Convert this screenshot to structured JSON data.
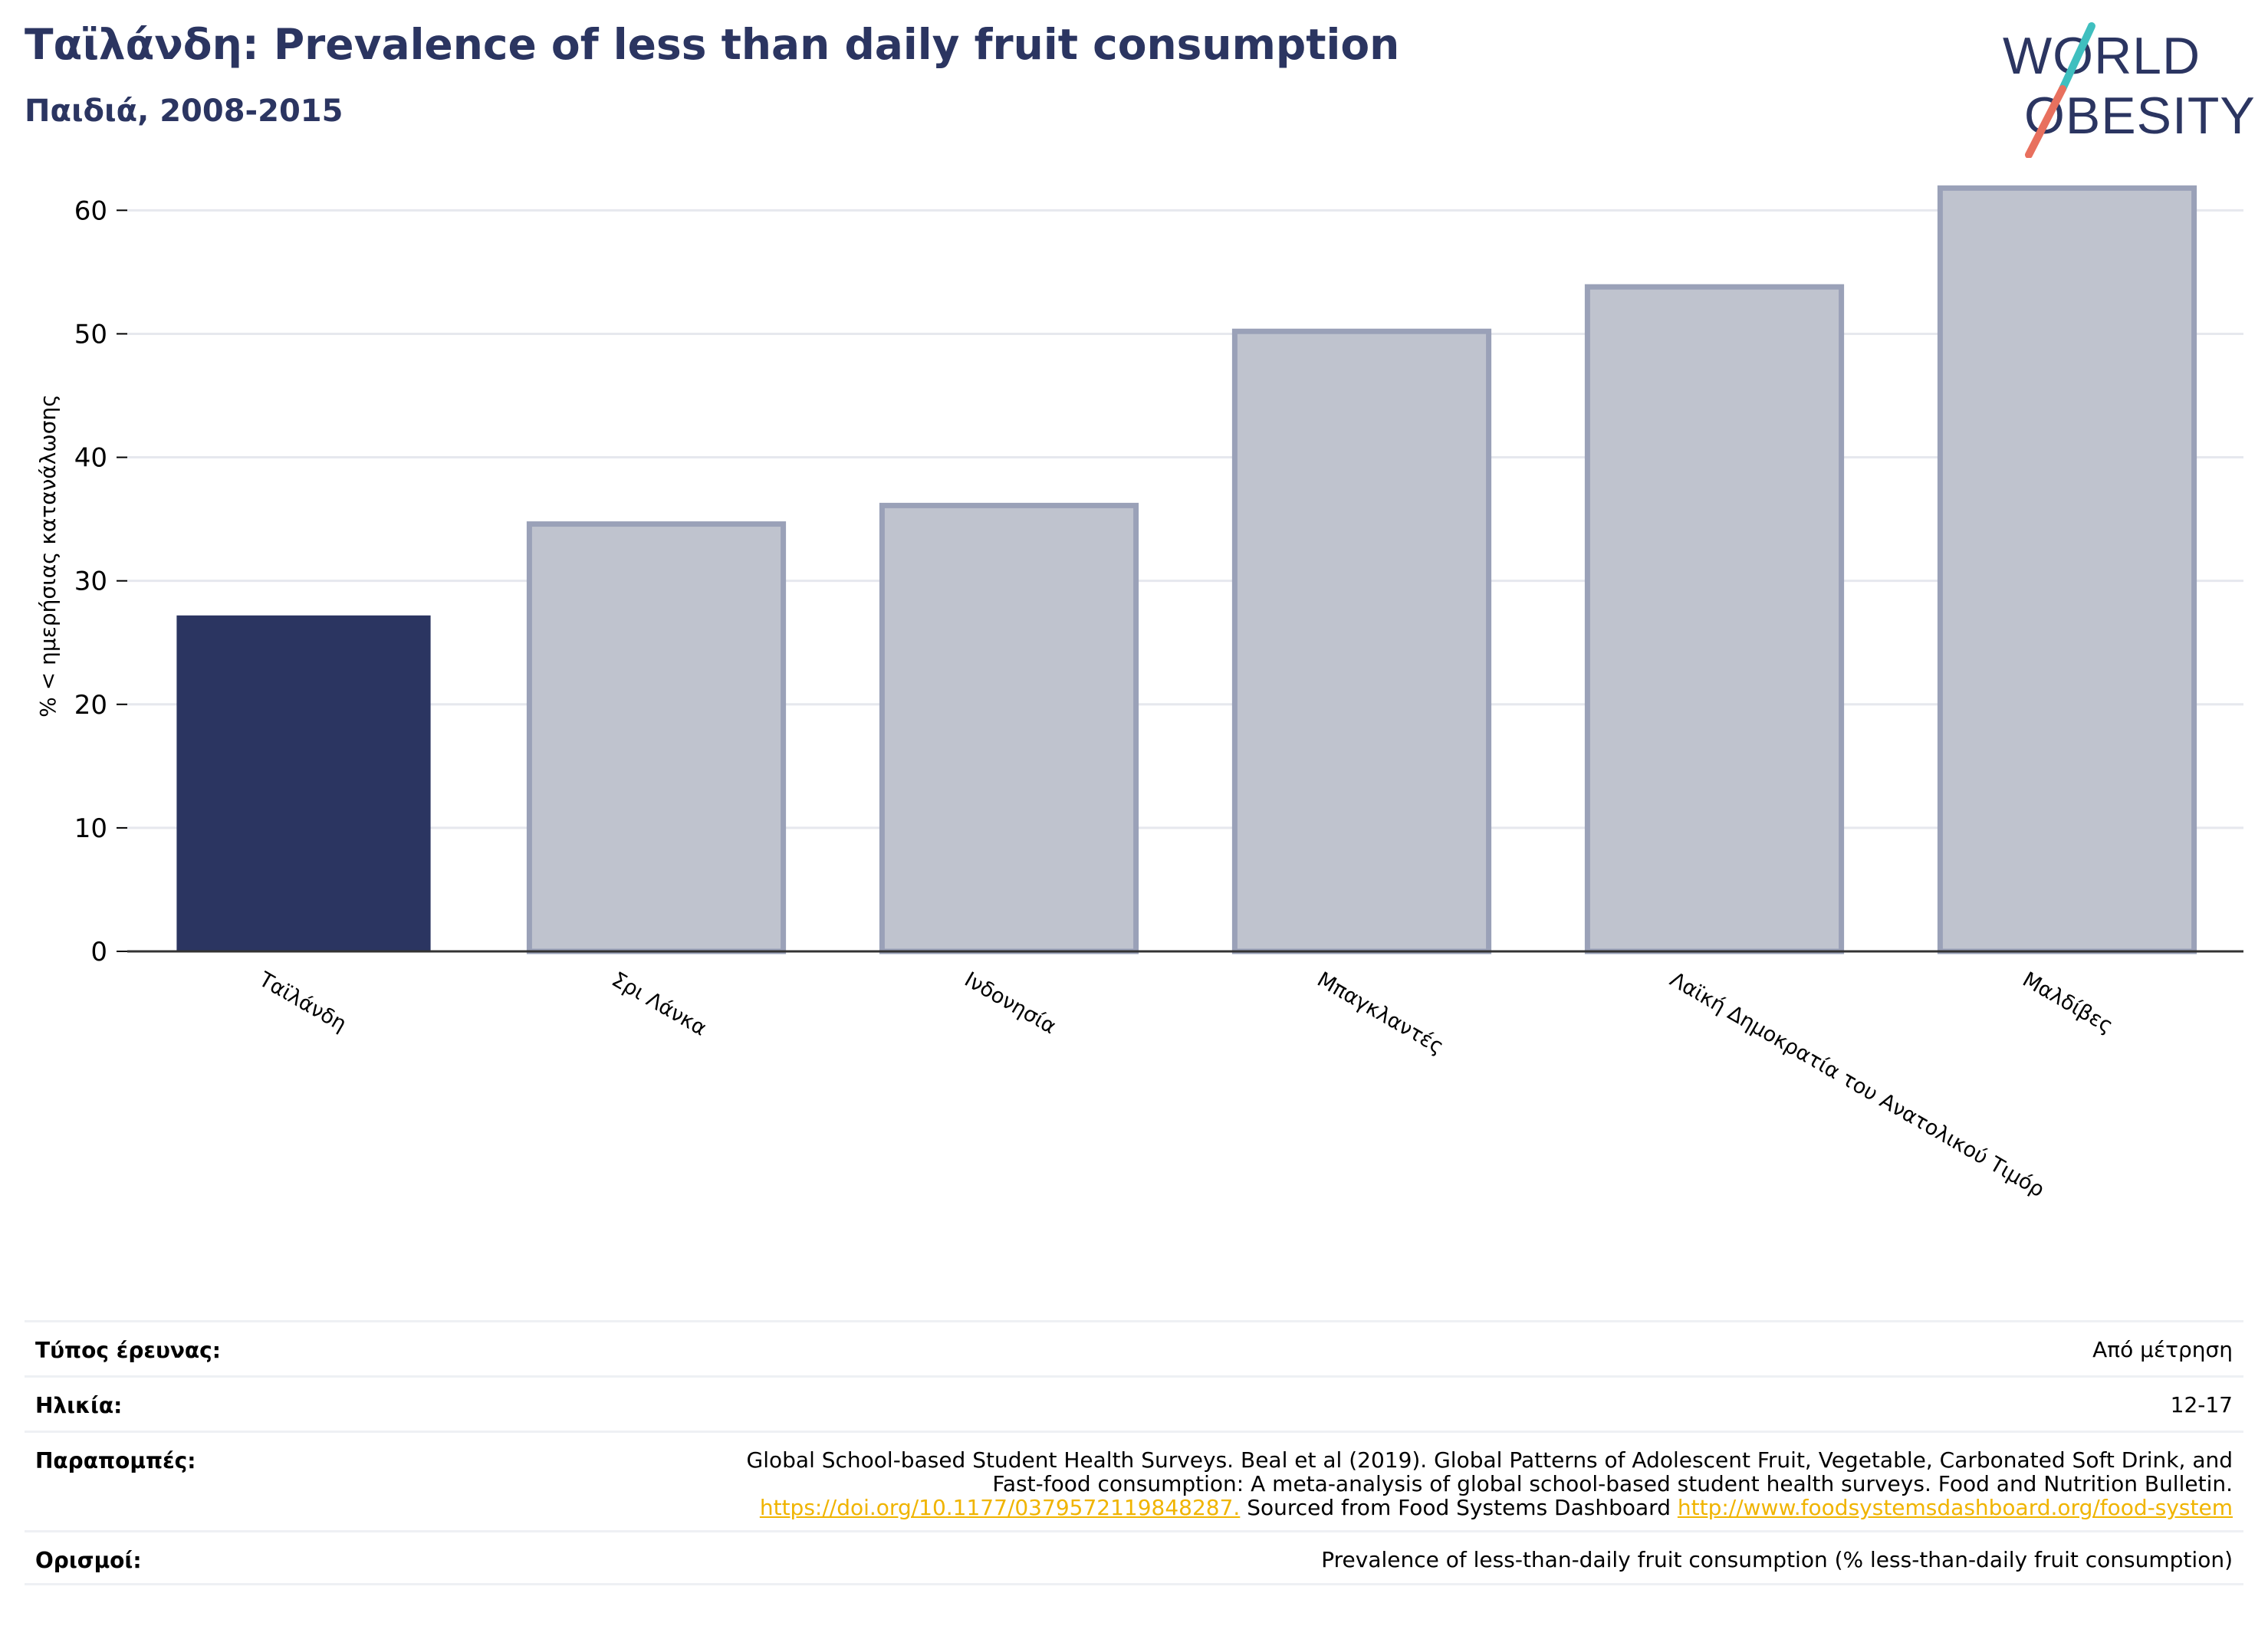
{
  "header": {
    "title": "Ταϊλάνδη: Prevalence of less than daily fruit consumption",
    "subtitle": "Παιδιά, 2008-2015"
  },
  "logo": {
    "line1": "WORLD",
    "line2": "OBESITY"
  },
  "colors": {
    "highlight": "#2b3561",
    "bar_fill": "#bfc3ce",
    "bar_stroke": "#9aa1b8",
    "grid": "#e6e8ee",
    "link": "#f0b400",
    "logo_teal": "#3fbfbf",
    "logo_coral": "#e8705e"
  },
  "chart_data": {
    "type": "bar",
    "ylabel": "% < ημερήσιας κατανάλωσης",
    "ylim": [
      0,
      63
    ],
    "yticks": [
      0,
      10,
      20,
      30,
      40,
      50,
      60
    ],
    "grid": true,
    "categories": [
      "Ταϊλάνδη",
      "Σρι Λάνκα",
      "Ινδονησία",
      "Μπαγκλαντές",
      "Λαϊκή Δημοκρατία του Ανατολικού Τιμόρ",
      "Μαλδίβες"
    ],
    "values": [
      27.2,
      34.6,
      36.1,
      50.2,
      53.8,
      61.8
    ],
    "highlight_index": 0
  },
  "meta": {
    "survey_type_label": "Τύπος έρευνας:",
    "survey_type_value": "Από μέτρηση",
    "age_label": "Ηλικία:",
    "age_value": "12-17",
    "refs_label": "Παραπομπές:",
    "refs_line1": "Global School-based Student Health Surveys. Beal et al (2019). Global Patterns of Adolescent Fruit, Vegetable, Carbonated Soft Drink, and",
    "refs_line2": "Fast-food consumption: A meta-analysis of global school-based student health surveys. Food and Nutrition Bulletin.",
    "refs_link1": "https://doi.org/10.1177/0379572119848287.",
    "refs_mid": " Sourced from Food Systems Dashboard ",
    "refs_link2": "http://www.foodsystemsdashboard.org/food-system",
    "defs_label": "Ορισμοί:",
    "defs_value": "Prevalence of less-than-daily fruit consumption (% less-than-daily fruit consumption)"
  }
}
